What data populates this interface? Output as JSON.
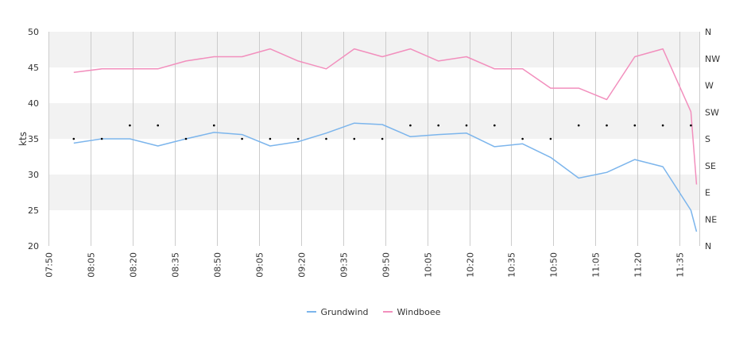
{
  "chart_data": {
    "type": "line",
    "ylabel": "kts",
    "ylim": [
      20,
      50
    ],
    "yticks": [
      "20",
      "25",
      "30",
      "35",
      "40",
      "45",
      "50"
    ],
    "xlim": [
      "07:50",
      "11:42"
    ],
    "xticks": [
      "07:50",
      "08:05",
      "08:20",
      "08:35",
      "08:50",
      "09:05",
      "09:20",
      "09:35",
      "09:50",
      "10:05",
      "10:20",
      "10:35",
      "10:50",
      "11:05",
      "11:20",
      "11:35"
    ],
    "y2ticks": [
      "N",
      "NE",
      "E",
      "SE",
      "S",
      "SW",
      "W",
      "NW",
      "N"
    ],
    "grid": true,
    "legend_position": "bottom-center",
    "x": [
      "07:59",
      "08:09",
      "08:19",
      "08:29",
      "08:39",
      "08:49",
      "08:59",
      "09:09",
      "09:19",
      "09:29",
      "09:39",
      "09:49",
      "09:59",
      "10:09",
      "10:19",
      "10:29",
      "10:39",
      "10:49",
      "10:59",
      "11:09",
      "11:19",
      "11:29",
      "11:39",
      "11:41"
    ],
    "series": [
      {
        "name": "Grundwind",
        "color": "#7cb5ec",
        "values": [
          34.4,
          35.0,
          35.0,
          34.0,
          35.0,
          35.9,
          35.6,
          34.0,
          34.6,
          35.8,
          37.2,
          37.0,
          35.3,
          35.6,
          35.8,
          33.9,
          34.3,
          32.4,
          29.5,
          30.3,
          32.1,
          31.1,
          25.0,
          22.0
        ]
      },
      {
        "name": "Windboee",
        "color": "#f28fbd",
        "values": [
          44.3,
          44.8,
          44.8,
          44.8,
          45.9,
          46.5,
          46.5,
          47.6,
          45.9,
          44.8,
          47.6,
          46.5,
          47.6,
          45.9,
          46.5,
          44.8,
          44.8,
          42.1,
          42.1,
          40.5,
          46.5,
          47.6,
          38.8,
          28.6
        ]
      }
    ],
    "direction": {
      "x": [
        "07:59",
        "08:09",
        "08:19",
        "08:29",
        "08:39",
        "08:49",
        "08:59",
        "09:09",
        "09:19",
        "09:29",
        "09:39",
        "09:49",
        "09:59",
        "10:09",
        "10:19",
        "10:29",
        "10:39",
        "10:49",
        "10:59",
        "11:09",
        "11:19",
        "11:29",
        "11:39"
      ],
      "values": [
        "S",
        "S",
        "SSW",
        "SSW",
        "S",
        "SSW",
        "S",
        "S",
        "S",
        "S",
        "S",
        "S",
        "SSW",
        "SSW",
        "SSW",
        "SSW",
        "S",
        "S",
        "SSW",
        "SSW",
        "SSW",
        "SSW",
        "SSW"
      ]
    }
  }
}
